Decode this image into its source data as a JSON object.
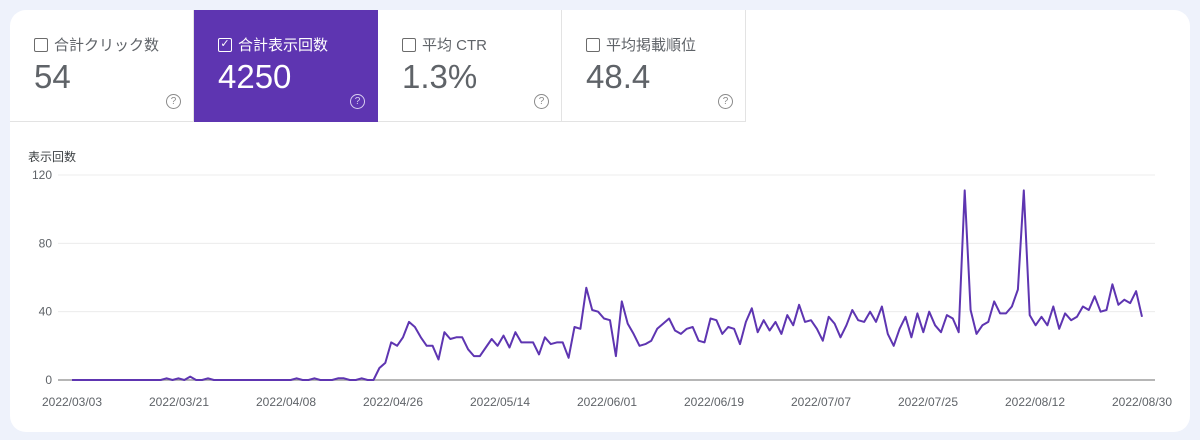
{
  "metrics": [
    {
      "label": "合計クリック数",
      "value": "54",
      "checked": false
    },
    {
      "label": "合計表示回数",
      "value": "4250",
      "checked": true
    },
    {
      "label": "平均 CTR",
      "value": "1.3%",
      "checked": false
    },
    {
      "label": "平均掲載順位",
      "value": "48.4",
      "checked": false
    }
  ],
  "help_icon": "question-circle-icon",
  "accent_color": "#5e35b1",
  "chart_data": {
    "type": "line",
    "ylabel": "表示回数",
    "ylim": [
      0,
      120
    ],
    "y_ticks": [
      "0",
      "40",
      "80",
      "120"
    ],
    "x_range": [
      "2022/03/03",
      "2022/08/30"
    ],
    "x_ticks": [
      "2022/03/03",
      "2022/03/21",
      "2022/04/08",
      "2022/04/26",
      "2022/05/14",
      "2022/06/01",
      "2022/06/19",
      "2022/07/07",
      "2022/07/25",
      "2022/08/12",
      "2022/08/30"
    ],
    "grid": true,
    "series_color": "#5e35b1",
    "values": [
      0,
      0,
      0,
      0,
      0,
      0,
      0,
      0,
      0,
      0,
      0,
      0,
      0,
      0,
      0,
      0,
      1,
      0,
      1,
      0,
      2,
      0,
      0,
      1,
      0,
      0,
      0,
      0,
      0,
      0,
      0,
      0,
      0,
      0,
      0,
      0,
      0,
      0,
      1,
      0,
      0,
      1,
      0,
      0,
      0,
      1,
      1,
      0,
      0,
      1,
      0,
      0,
      7,
      10,
      22,
      20,
      25,
      34,
      31,
      25,
      20,
      20,
      12,
      28,
      24,
      25,
      25,
      18,
      14,
      14,
      19,
      24,
      20,
      26,
      19,
      28,
      22,
      22,
      22,
      15,
      25,
      21,
      22,
      22,
      13,
      31,
      30,
      54,
      41,
      40,
      36,
      35,
      14,
      46,
      33,
      27,
      20,
      21,
      23,
      30,
      33,
      36,
      29,
      27,
      30,
      31,
      23,
      22,
      36,
      35,
      27,
      31,
      30,
      21,
      34,
      42,
      28,
      35,
      29,
      34,
      27,
      38,
      32,
      44,
      34,
      35,
      30,
      23,
      37,
      33,
      25,
      32,
      41,
      35,
      34,
      40,
      34,
      43,
      27,
      20,
      30,
      37,
      25,
      39,
      28,
      40,
      32,
      28,
      38,
      36,
      28,
      111,
      41,
      27,
      32,
      34,
      46,
      39,
      39,
      43,
      53,
      111,
      38,
      32,
      37,
      32,
      43,
      30,
      39,
      35,
      37,
      43,
      41,
      49,
      40,
      41,
      56,
      44,
      47,
      45,
      52,
      37
    ]
  }
}
